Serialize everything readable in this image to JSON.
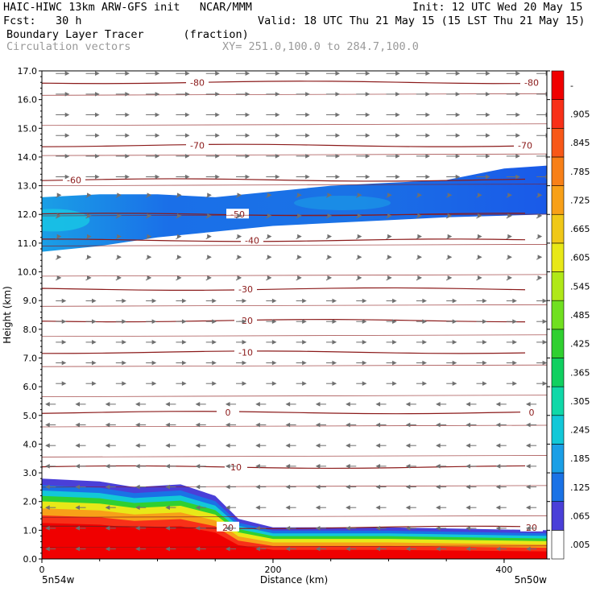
{
  "header": {
    "model_line": "HAIC-HIWC 13km ARW-GFS init   NCAR/MMM",
    "init_line": "Init: 12 UTC Wed 20 May 15",
    "fcst_line": "Fcst:   30 h",
    "valid_line": "Valid: 18 UTC Thu 21 May 15 (15 LST Thu 21 May 15)",
    "field_line": "Boundary Layer Tracer      (fraction)",
    "vector_line": "Circulation vectors",
    "xy_line": "XY= 251.0,100.0 to 284.7,100.0"
  },
  "chart_data": {
    "type": "heatmap",
    "title": "Boundary Layer Tracer",
    "units": "(fraction)",
    "xlabel": "Distance (km)",
    "ylabel": "Height (km)",
    "xlim": [
      0,
      437
    ],
    "ylim": [
      0,
      17
    ],
    "x_ticks": [
      "0",
      "200",
      "400"
    ],
    "x_tick_values": [
      0,
      200,
      400
    ],
    "x_endpoints": [
      "5n54w",
      "5n50w"
    ],
    "y_ticks": [
      "0.0",
      "1.0",
      "2.0",
      "3.0",
      "4.0",
      "5.0",
      "6.0",
      "7.0",
      "8.0",
      "9.0",
      "10.0",
      "11.0",
      "12.0",
      "13.0",
      "14.0",
      "15.0",
      "16.0",
      "17.0"
    ],
    "colorbar": {
      "labels": [
        ".005",
        ".065",
        ".125",
        ".185",
        ".245",
        ".305",
        ".365",
        ".425",
        ".485",
        ".545",
        ".605",
        ".665",
        ".725",
        ".785",
        ".845",
        ".905",
        "-"
      ],
      "colors": [
        "#ffffff",
        "#4a3fd8",
        "#1a72e6",
        "#1a9fe6",
        "#12c8d8",
        "#10d8a8",
        "#10d060",
        "#30d030",
        "#70e020",
        "#b0e818",
        "#e8e818",
        "#f0c818",
        "#f8a018",
        "#f88018",
        "#f85818",
        "#f83018",
        "#f00000"
      ]
    },
    "isotherms": [
      {
        "label": "-80",
        "height": 16.6
      },
      {
        "label": "-70",
        "height": 14.4
      },
      {
        "label": "-60",
        "height": 13.2
      },
      {
        "label": "-50",
        "height": 12.0
      },
      {
        "label": "-40",
        "height": 11.1
      },
      {
        "label": "-30",
        "height": 9.4
      },
      {
        "label": "-20",
        "height": 8.3
      },
      {
        "label": "-10",
        "height": 7.2
      },
      {
        "label": "0",
        "height": 5.1
      },
      {
        "label": "10",
        "height": 3.2
      },
      {
        "label": "20",
        "height": 1.1
      }
    ],
    "tracer_layers": [
      {
        "name": "upper",
        "bottom": [
          [
            0,
            10.7
          ],
          [
            50,
            10.9
          ],
          [
            100,
            11.2
          ],
          [
            150,
            11.4
          ],
          [
            200,
            11.6
          ],
          [
            250,
            11.7
          ],
          [
            300,
            11.8
          ],
          [
            350,
            11.9
          ],
          [
            437,
            12.0
          ]
        ],
        "top": [
          [
            0,
            12.6
          ],
          [
            50,
            12.7
          ],
          [
            100,
            12.7
          ],
          [
            150,
            12.6
          ],
          [
            200,
            12.8
          ],
          [
            250,
            13.0
          ],
          [
            300,
            13.1
          ],
          [
            350,
            13.2
          ],
          [
            400,
            13.6
          ],
          [
            437,
            13.7
          ]
        ]
      },
      {
        "name": "lower",
        "top": [
          [
            0,
            2.8
          ],
          [
            50,
            2.7
          ],
          [
            80,
            2.5
          ],
          [
            120,
            2.6
          ],
          [
            150,
            2.2
          ],
          [
            170,
            1.4
          ],
          [
            200,
            1.1
          ],
          [
            300,
            1.1
          ],
          [
            437,
            1.0
          ]
        ]
      }
    ]
  }
}
